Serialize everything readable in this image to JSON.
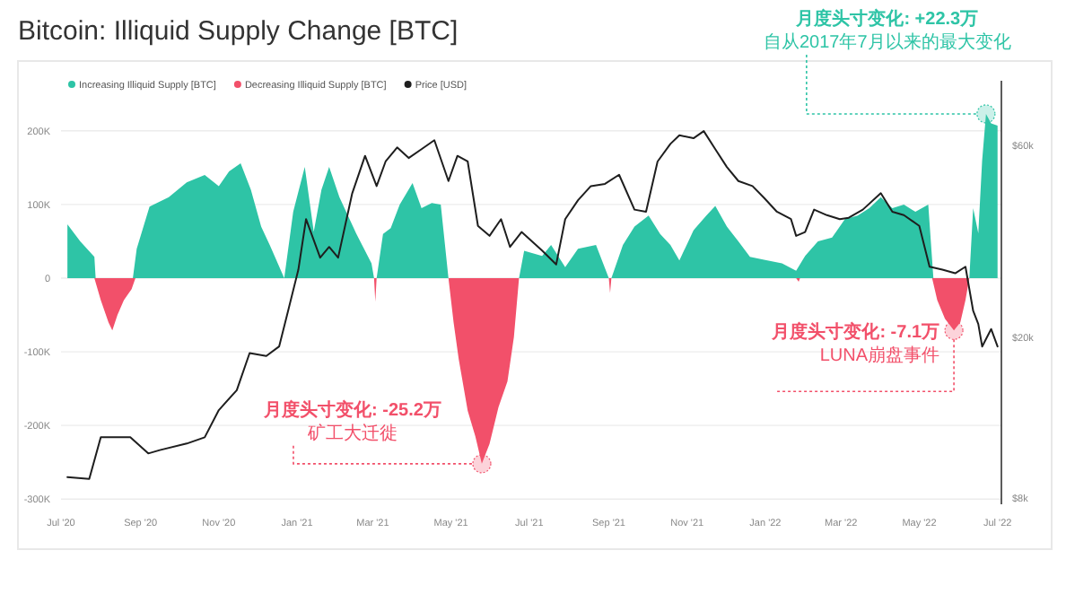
{
  "chart_data": {
    "type": "area",
    "title": "Bitcoin: Illiquid Supply Change [BTC]",
    "legend": "top left",
    "grid": "y",
    "log": "y2",
    "xlim": [
      "2020-07-01",
      "2022-07-04"
    ],
    "xticks": [
      {
        "value": "2020-07-01",
        "label": "Jul '20"
      },
      {
        "value": "2020-09-01",
        "label": "Sep '20"
      },
      {
        "value": "2020-11-01",
        "label": "Nov '20"
      },
      {
        "value": "2021-01-01",
        "label": "Jan '21"
      },
      {
        "value": "2021-03-01",
        "label": "Mar '21"
      },
      {
        "value": "2021-05-01",
        "label": "May '21"
      },
      {
        "value": "2021-07-01",
        "label": "Jul '21"
      },
      {
        "value": "2021-09-01",
        "label": "Sep '21"
      },
      {
        "value": "2021-11-01",
        "label": "Nov '21"
      },
      {
        "value": "2022-01-01",
        "label": "Jan '22"
      },
      {
        "value": "2022-03-01",
        "label": "Mar '22"
      },
      {
        "value": "2022-05-01",
        "label": "May '22"
      },
      {
        "value": "2022-07-01",
        "label": "Jul '22"
      }
    ],
    "ylim": [
      -307000,
      268000
    ],
    "yticks": [
      {
        "value": 200000,
        "label": "200K"
      },
      {
        "value": 100000,
        "label": "100K"
      },
      0,
      {
        "value": -100000,
        "label": "-100K"
      },
      {
        "value": -200000,
        "label": "-200K"
      },
      {
        "value": -300000,
        "label": "-300K"
      }
    ],
    "y2lim": [
      7700,
      87000
    ],
    "y2ticks": [
      {
        "value": 60000,
        "label": "$60k"
      },
      {
        "value": 20000,
        "label": "$20k"
      },
      {
        "value": 8000,
        "label": "$8k"
      }
    ],
    "series": [
      {
        "name": "Increasing Illiquid Supply [BTC]",
        "color": "#2ec4a6",
        "x": [
          "2020-07-06",
          "2020-07-16",
          "2020-07-27",
          "2020-07-28",
          "2020-08-26",
          "2020-08-29",
          "2020-09-08",
          "2020-09-23",
          "2020-10-07",
          "2020-10-21",
          "2020-11-01",
          "2020-11-09",
          "2020-11-18",
          "2020-11-26",
          "2020-12-04",
          "2020-12-11",
          "2020-12-22",
          "2020-12-29",
          "2021-01-07",
          "2021-01-14",
          "2021-01-20",
          "2021-01-26",
          "2021-02-03",
          "2021-02-16",
          "2021-02-28",
          "2021-03-02",
          "2021-03-04",
          "2021-03-09",
          "2021-03-15",
          "2021-03-22",
          "2021-04-01",
          "2021-04-08",
          "2021-04-16",
          "2021-04-23",
          "2021-04-29",
          "2021-06-23",
          "2021-06-27",
          "2021-07-11",
          "2021-07-18",
          "2021-07-29",
          "2021-08-08",
          "2021-08-22",
          "2021-09-01",
          "2021-09-03",
          "2021-09-12",
          "2021-09-21",
          "2021-10-02",
          "2021-10-11",
          "2021-10-19",
          "2021-10-26",
          "2021-11-06",
          "2021-11-16",
          "2021-11-23",
          "2021-12-02",
          "2021-12-11",
          "2021-12-20",
          "2021-12-31",
          "2022-01-14",
          "2022-01-25",
          "2022-02-01",
          "2022-02-11",
          "2022-02-22",
          "2022-03-04",
          "2022-03-14",
          "2022-03-23",
          "2022-04-01",
          "2022-04-10",
          "2022-04-19",
          "2022-04-28",
          "2022-05-08",
          "2022-05-12",
          "2022-06-09",
          "2022-06-12",
          "2022-06-16",
          "2022-06-19",
          "2022-06-22",
          "2022-06-26",
          "2022-07-01"
        ],
        "values": [
          73000,
          50000,
          29000,
          0,
          0,
          40000,
          97000,
          110000,
          130000,
          140000,
          125000,
          145000,
          156000,
          120000,
          70000,
          44000,
          0,
          90000,
          151000,
          63000,
          120000,
          151000,
          110000,
          61000,
          20000,
          0,
          0,
          60000,
          68000,
          100000,
          129000,
          95000,
          102000,
          100000,
          0,
          0,
          37000,
          30000,
          45000,
          15000,
          40000,
          45000,
          0,
          0,
          45000,
          70000,
          85000,
          60000,
          45000,
          24000,
          65000,
          85000,
          98000,
          70000,
          50000,
          29000,
          25000,
          20000,
          10000,
          30000,
          50000,
          55000,
          80000,
          85000,
          95000,
          110000,
          95000,
          100000,
          90000,
          100000,
          0,
          0,
          95000,
          61000,
          160000,
          223000,
          210000,
          207000
        ]
      },
      {
        "name": "Decreasing Illiquid Supply [BTC]",
        "color": "#f2506a",
        "x": [
          "2020-07-27",
          "2020-08-01",
          "2020-08-07",
          "2020-08-10",
          "2020-08-14",
          "2020-08-19",
          "2020-08-25",
          "2020-08-28",
          "2021-03-02",
          "2021-03-03",
          "2021-03-04",
          "2021-04-29",
          "2021-05-03",
          "2021-05-07",
          "2021-05-14",
          "2021-05-20",
          "2021-05-25",
          "2021-05-31",
          "2021-06-07",
          "2021-06-14",
          "2021-06-19",
          "2021-06-23",
          "2021-09-01",
          "2021-09-02",
          "2021-09-03",
          "2022-01-25",
          "2022-01-27",
          "2022-01-28",
          "2022-05-11",
          "2022-05-15",
          "2022-05-21",
          "2022-05-28",
          "2022-06-02",
          "2022-06-06",
          "2022-06-09"
        ],
        "values": [
          0,
          -30000,
          -60000,
          -71000,
          -50000,
          -30000,
          -15000,
          0,
          0,
          -32000,
          0,
          0,
          -60000,
          -110000,
          -180000,
          -215000,
          -252000,
          -225000,
          -175000,
          -140000,
          -80000,
          0,
          0,
          -20000,
          0,
          0,
          -5000,
          0,
          0,
          -30000,
          -55000,
          -71000,
          -60000,
          -30000,
          0
        ]
      },
      {
        "name": "Price [USD]",
        "type": "line",
        "color": "#1e1e1e",
        "axis": "y2",
        "x": [
          "2020-07-06",
          "2020-07-23",
          "2020-08-01",
          "2020-08-13",
          "2020-08-24",
          "2020-09-07",
          "2020-09-16",
          "2020-10-07",
          "2020-10-21",
          "2020-11-01",
          "2020-11-15",
          "2020-11-25",
          "2020-12-08",
          "2020-12-18",
          "2020-12-25",
          "2021-01-02",
          "2021-01-08",
          "2021-01-19",
          "2021-01-26",
          "2021-02-02",
          "2021-02-13",
          "2021-02-23",
          "2021-03-04",
          "2021-03-11",
          "2021-03-20",
          "2021-03-29",
          "2021-04-08",
          "2021-04-18",
          "2021-04-29",
          "2021-05-06",
          "2021-05-14",
          "2021-05-22",
          "2021-05-31",
          "2021-06-09",
          "2021-06-16",
          "2021-06-25",
          "2021-07-11",
          "2021-07-22",
          "2021-07-29",
          "2021-08-08",
          "2021-08-18",
          "2021-08-29",
          "2021-09-09",
          "2021-09-21",
          "2021-09-30",
          "2021-10-09",
          "2021-10-19",
          "2021-10-26",
          "2021-11-06",
          "2021-11-14",
          "2021-11-23",
          "2021-12-02",
          "2021-12-11",
          "2021-12-22",
          "2021-12-31",
          "2022-01-10",
          "2022-01-21",
          "2022-01-25",
          "2022-02-01",
          "2022-02-08",
          "2022-02-18",
          "2022-02-28",
          "2022-03-07",
          "2022-03-18",
          "2022-04-01",
          "2022-04-10",
          "2022-04-19",
          "2022-05-01",
          "2022-05-09",
          "2022-05-19",
          "2022-05-29",
          "2022-06-06",
          "2022-06-12",
          "2022-06-16",
          "2022-06-19",
          "2022-06-26",
          "2022-07-01"
        ],
        "values": [
          9000,
          8900,
          11300,
          11300,
          11300,
          10300,
          10500,
          10900,
          11300,
          13200,
          14800,
          18300,
          18000,
          19000,
          23300,
          29500,
          39400,
          31600,
          33600,
          31600,
          45700,
          56600,
          47600,
          54800,
          59400,
          55900,
          58800,
          61900,
          49000,
          56600,
          54800,
          37900,
          35800,
          39400,
          33600,
          36600,
          32900,
          30400,
          39400,
          43900,
          47600,
          48200,
          50800,
          41600,
          41100,
          54800,
          60600,
          63700,
          62600,
          65200,
          58800,
          53100,
          49000,
          47600,
          44500,
          41100,
          39400,
          35800,
          36600,
          41600,
          40300,
          39400,
          39700,
          41600,
          45700,
          41100,
          40300,
          37900,
          30000,
          29500,
          28900,
          30000,
          23300,
          21600,
          19000,
          21000,
          19000
        ]
      }
    ],
    "annotations": [
      "月度头寸变化: +22.3万",
      {
        "text": "自从2017年7月以来的最大变化",
        "x": "2022-06-22",
        "y": 223000
      },
      "月度头寸变化: -25.2万",
      {
        "text": "矿工大迁徙",
        "x": "2021-05-25",
        "y": -252000
      },
      "月度头寸变化: -7.1万",
      {
        "text": "LUNA崩盘事件",
        "x": "2022-05-28",
        "y": -71000
      }
    ]
  }
}
